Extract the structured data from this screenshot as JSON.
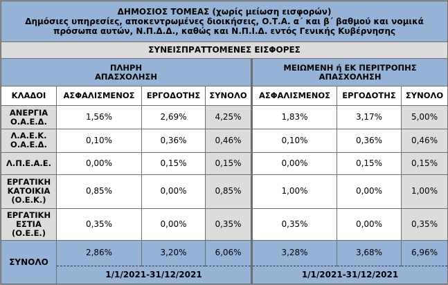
{
  "title": {
    "line1": "ΔΗΜΟΣΙΟΣ ΤΟΜΕΑΣ (χωρίς μείωση εισφορών)",
    "line2": "Δημόσιες υπηρεσίες, αποκεντρωμένες διοικήσεις, Ο.Τ.Α. α΄ και β΄ βαθμού και νομικά",
    "line3": "πρόσωπα αυτών, Ν.Π.Δ.Δ., καθώς και Ν.Π.Ι.Δ. εντός Γενικής Κυβέρνησης"
  },
  "subtitle": "ΣΥΝΕΙΣΠΡΑΤΤΟΜΕΝΕΣ ΕΙΣΦΟΡΕΣ",
  "groups": {
    "full": {
      "l1": "ΠΛΗΡΗ",
      "l2": "ΑΠΑΣΧΟΛΗΣΗ"
    },
    "reduced": {
      "l1": "ΜΕΙΩΜΕΝΗ ή ΕΚ ΠΕΡΙΤΡΟΠΗΣ",
      "l2": "ΑΠΑΣΧΟΛΗΣΗ"
    }
  },
  "columns": [
    "ΚΛΑΔΟΙ",
    "ΑΣΦΑΛΙΣΜΕΝΟΣ",
    "ΕΡΓΟΔΟΤΗΣ",
    "ΣΥΝΟΛΟ",
    "ΑΣΦΑΛΙΣΜΕΝΟΣ",
    "ΕΡΓΟΔΟΤΗΣ",
    "ΣΥΝΟΛΟ"
  ],
  "rows": [
    {
      "l1": "ΑΝΕΡΓΙΑ",
      "l2": "Ο.Α.Ε.Δ.",
      "l3": "",
      "v": [
        "1,56%",
        "2,69%",
        "4,25%",
        "1,83%",
        "3,17%",
        "5,00%"
      ]
    },
    {
      "l1": "Λ.Α.Ε.Κ.",
      "l2": "Ο.Α.Ε.Δ.",
      "l3": "",
      "v": [
        "0,10%",
        "0,36%",
        "0,46%",
        "0,10%",
        "0,36%",
        "0,46%"
      ]
    },
    {
      "l1": "Λ.Π.Ε.Α.Ε.",
      "l2": "",
      "l3": "",
      "v": [
        "0,00%",
        "0,15%",
        "0,15%",
        "0,00%",
        "0,15%",
        "0,15%"
      ]
    },
    {
      "l1": "ΕΡΓΑΤΙΚΗ",
      "l2": "ΚΑΤΟΙΚΙΑ",
      "l3": "(Ο.Ε.Κ.)",
      "v": [
        "0,85%",
        "0,00%",
        "0,85%",
        "1,00%",
        "0,00%",
        "1,00%"
      ]
    },
    {
      "l1": "ΕΡΓΑΤΙΚΗ",
      "l2": "ΕΣΤΙΑ",
      "l3": "(Ο.Ε.Ε.)",
      "v": [
        "0,35%",
        "0,00%",
        "0,35%",
        "0,35%",
        "0,00%",
        "0,35%"
      ]
    }
  ],
  "total": {
    "label": "ΣΥΝΟΛΟ",
    "v": [
      "2,86%",
      "3,20%",
      "6,06%",
      "3,28%",
      "3,68%",
      "6,96%"
    ],
    "period_full": "1/1/2021-31/12/2021",
    "period_reduced": "1/1/2021-31/12/2021"
  },
  "colors": {
    "header_blue": "#95b3d7",
    "total_gray": "#dcdcdc"
  }
}
